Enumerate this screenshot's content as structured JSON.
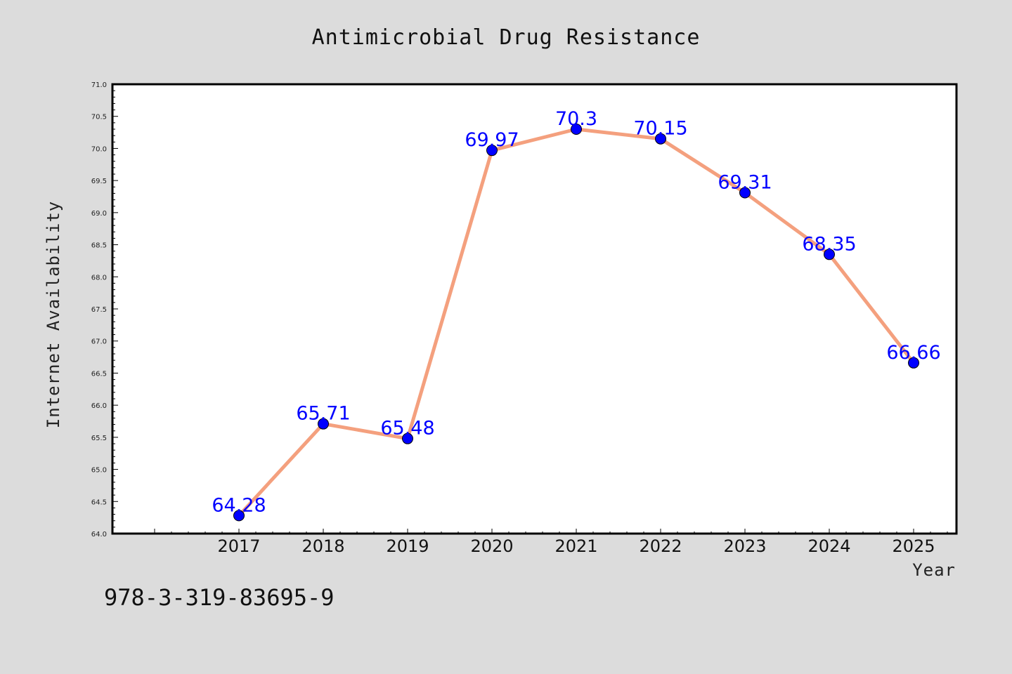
{
  "chart_data": {
    "type": "line",
    "title": "Antimicrobial Drug Resistance",
    "xlabel": "Year",
    "ylabel": "Internet Availability",
    "categories": [
      "2017",
      "2018",
      "2019",
      "2020",
      "2021",
      "2022",
      "2023",
      "2024",
      "2025"
    ],
    "series": [
      {
        "values": [
          64.28,
          65.71,
          65.48,
          69.97,
          70.3,
          70.15,
          69.31,
          68.35,
          66.66
        ],
        "data_labels": [
          "64.28",
          "65.71",
          "65.48",
          "69.97",
          "70.3",
          "70.15",
          "69.31",
          "68.35",
          "66.66"
        ]
      }
    ],
    "ylim": [
      64.0,
      71.0
    ],
    "yticks": [
      "64.0",
      "64.5",
      "65.0",
      "65.5",
      "66.0",
      "66.5",
      "67.0",
      "67.5",
      "68.0",
      "68.5",
      "69.0",
      "69.5",
      "70.0",
      "70.5",
      "71.0"
    ],
    "grid": false,
    "legend": "none",
    "colors": {
      "line": "#f4a07e",
      "marker": "#0000ff",
      "label": "#0000ff",
      "background": "#dcdcdc",
      "plot_background": "#ffffff"
    }
  },
  "footer": {
    "isbn": "978-3-319-83695-9"
  }
}
